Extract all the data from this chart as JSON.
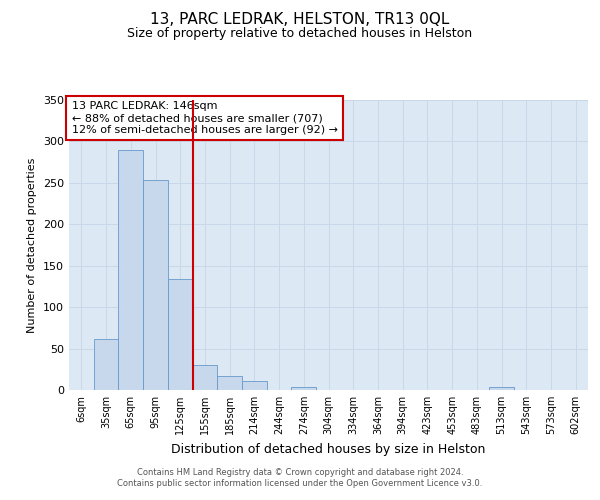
{
  "title": "13, PARC LEDRAK, HELSTON, TR13 0QL",
  "subtitle": "Size of property relative to detached houses in Helston",
  "xlabel": "Distribution of detached houses by size in Helston",
  "ylabel": "Number of detached properties",
  "annotation_line1": "13 PARC LEDRAK: 146sqm",
  "annotation_line2": "← 88% of detached houses are smaller (707)",
  "annotation_line3": "12% of semi-detached houses are larger (92) →",
  "footer_line1": "Contains HM Land Registry data © Crown copyright and database right 2024.",
  "footer_line2": "Contains public sector information licensed under the Open Government Licence v3.0.",
  "bin_labels": [
    "6sqm",
    "35sqm",
    "65sqm",
    "95sqm",
    "125sqm",
    "155sqm",
    "185sqm",
    "214sqm",
    "244sqm",
    "274sqm",
    "304sqm",
    "334sqm",
    "364sqm",
    "394sqm",
    "423sqm",
    "453sqm",
    "483sqm",
    "513sqm",
    "543sqm",
    "573sqm",
    "602sqm"
  ],
  "bar_values": [
    0,
    62,
    290,
    254,
    134,
    30,
    17,
    11,
    0,
    4,
    0,
    0,
    0,
    0,
    0,
    0,
    0,
    4,
    0,
    0,
    0
  ],
  "bar_color": "#c8d8ec",
  "bar_edge_color": "#6699cc",
  "vline_x_index": 4.5,
  "vline_color": "#cc0000",
  "annotation_box_color": "#cc0000",
  "ylim": [
    0,
    350
  ],
  "yticks": [
    0,
    50,
    100,
    150,
    200,
    250,
    300,
    350
  ],
  "grid_color": "#c8d8e8",
  "bg_color": "#dce8f4",
  "title_fontsize": 11,
  "subtitle_fontsize": 9
}
